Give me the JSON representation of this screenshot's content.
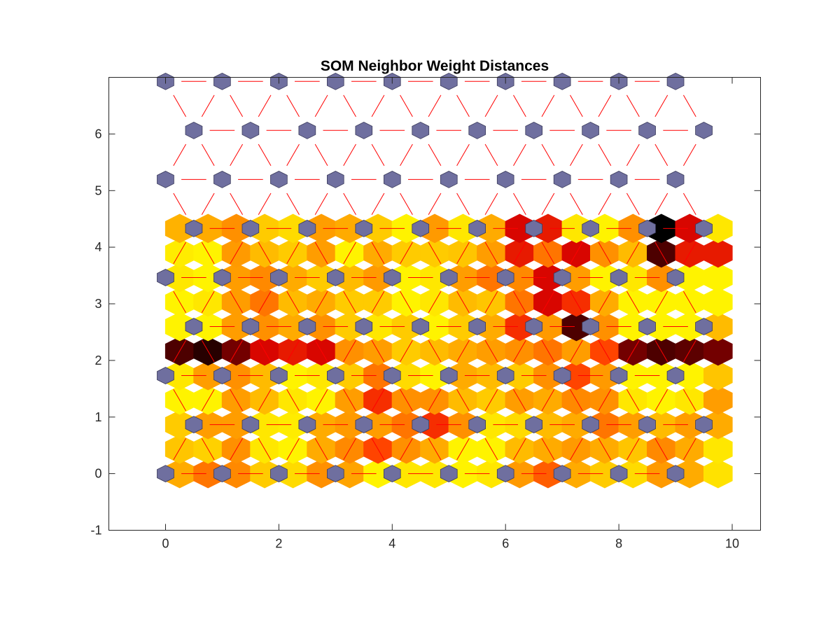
{
  "chart_data": {
    "type": "heatmap",
    "title": "SOM Neighbor Weight Distances",
    "xlabel": "",
    "ylabel": "",
    "xlim": [
      -1,
      10.5
    ],
    "ylim": [
      -1,
      7
    ],
    "x_ticks": [
      0,
      2,
      4,
      6,
      8,
      10
    ],
    "y_ticks": [
      -1,
      0,
      1,
      2,
      3,
      4,
      5,
      6
    ],
    "x_tick_labels": [
      "0",
      "2",
      "4",
      "6",
      "8",
      "10"
    ],
    "y_tick_labels": [
      "-1",
      "0",
      "1",
      "2",
      "3",
      "4",
      "5",
      "6"
    ],
    "grid": false,
    "grid_dims": [
      10,
      9
    ],
    "neuron_color": "#6f6f9f",
    "line_color": "#ff0000",
    "axis_color": "#262626",
    "colormap": [
      "#000000",
      "#6e0000",
      "#d40000",
      "#ff3a00",
      "#ff7f00",
      "#ffb000",
      "#ffdd00",
      "#ffff00"
    ],
    "distance_rows": [
      [
        0.7,
        0.55,
        0.6,
        0.8,
        0.85,
        0.62,
        0.68,
        0.95,
        0.9,
        0.9,
        0.95,
        0.9,
        0.65,
        0.5,
        0.7,
        0.8,
        0.85,
        0.65,
        0.7,
        0.88
      ],
      [
        0.78,
        0.82,
        0.62,
        0.9,
        0.95,
        0.7,
        0.6,
        0.45,
        0.62,
        0.7,
        0.95,
        0.95,
        0.75,
        0.7,
        0.65,
        0.7,
        0.78,
        0.6,
        0.7,
        0.9
      ],
      [
        0.8,
        0.66,
        0.66,
        0.9,
        0.92,
        0.7,
        0.65,
        0.66,
        0.55,
        0.4,
        0.62,
        0.9,
        0.85,
        0.75,
        0.7,
        0.55,
        0.66,
        0.75,
        0.66,
        0.7
      ],
      [
        0.95,
        0.95,
        0.66,
        0.75,
        0.9,
        0.95,
        0.66,
        0.4,
        0.62,
        0.62,
        0.75,
        0.8,
        0.66,
        0.7,
        0.6,
        0.62,
        0.9,
        0.95,
        0.9,
        0.66
      ],
      [
        0.9,
        0.66,
        0.62,
        0.75,
        0.95,
        0.9,
        0.8,
        0.55,
        0.85,
        0.95,
        0.7,
        0.75,
        0.8,
        0.62,
        0.45,
        0.65,
        0.95,
        0.95,
        0.95,
        0.78
      ],
      [
        0.1,
        0.05,
        0.15,
        0.3,
        0.35,
        0.3,
        0.62,
        0.66,
        0.8,
        0.75,
        0.7,
        0.66,
        0.62,
        0.55,
        0.66,
        0.45,
        0.15,
        0.1,
        0.12,
        0.15
      ],
      [
        0.95,
        0.95,
        0.66,
        0.62,
        0.7,
        0.62,
        0.8,
        0.9,
        0.8,
        0.95,
        0.8,
        0.7,
        0.4,
        0.65,
        0.1,
        0.62,
        0.95,
        0.95,
        0.95,
        0.75
      ],
      [
        0.95,
        0.9,
        0.66,
        0.55,
        0.75,
        0.7,
        0.8,
        0.8,
        0.95,
        0.9,
        0.75,
        0.78,
        0.55,
        0.3,
        0.4,
        0.7,
        0.95,
        0.95,
        0.95,
        0.95
      ],
      [
        0.9,
        0.95,
        0.66,
        0.6,
        0.7,
        0.8,
        0.75,
        0.65,
        0.95,
        0.9,
        0.66,
        0.55,
        0.6,
        0.3,
        0.66,
        0.95,
        0.9,
        0.62,
        0.95,
        0.95
      ],
      [
        0.92,
        0.95,
        0.65,
        0.75,
        0.8,
        0.66,
        0.95,
        0.7,
        0.8,
        0.8,
        0.78,
        0.66,
        0.35,
        0.55,
        0.3,
        0.62,
        0.75,
        0.1,
        0.35,
        0.35
      ],
      [
        0.72,
        0.7,
        0.62,
        0.8,
        0.85,
        0.66,
        0.7,
        0.8,
        0.95,
        0.65,
        0.9,
        0.7,
        0.3,
        0.35,
        0.9,
        0.95,
        0.62,
        0.0,
        0.3,
        0.9
      ]
    ]
  }
}
